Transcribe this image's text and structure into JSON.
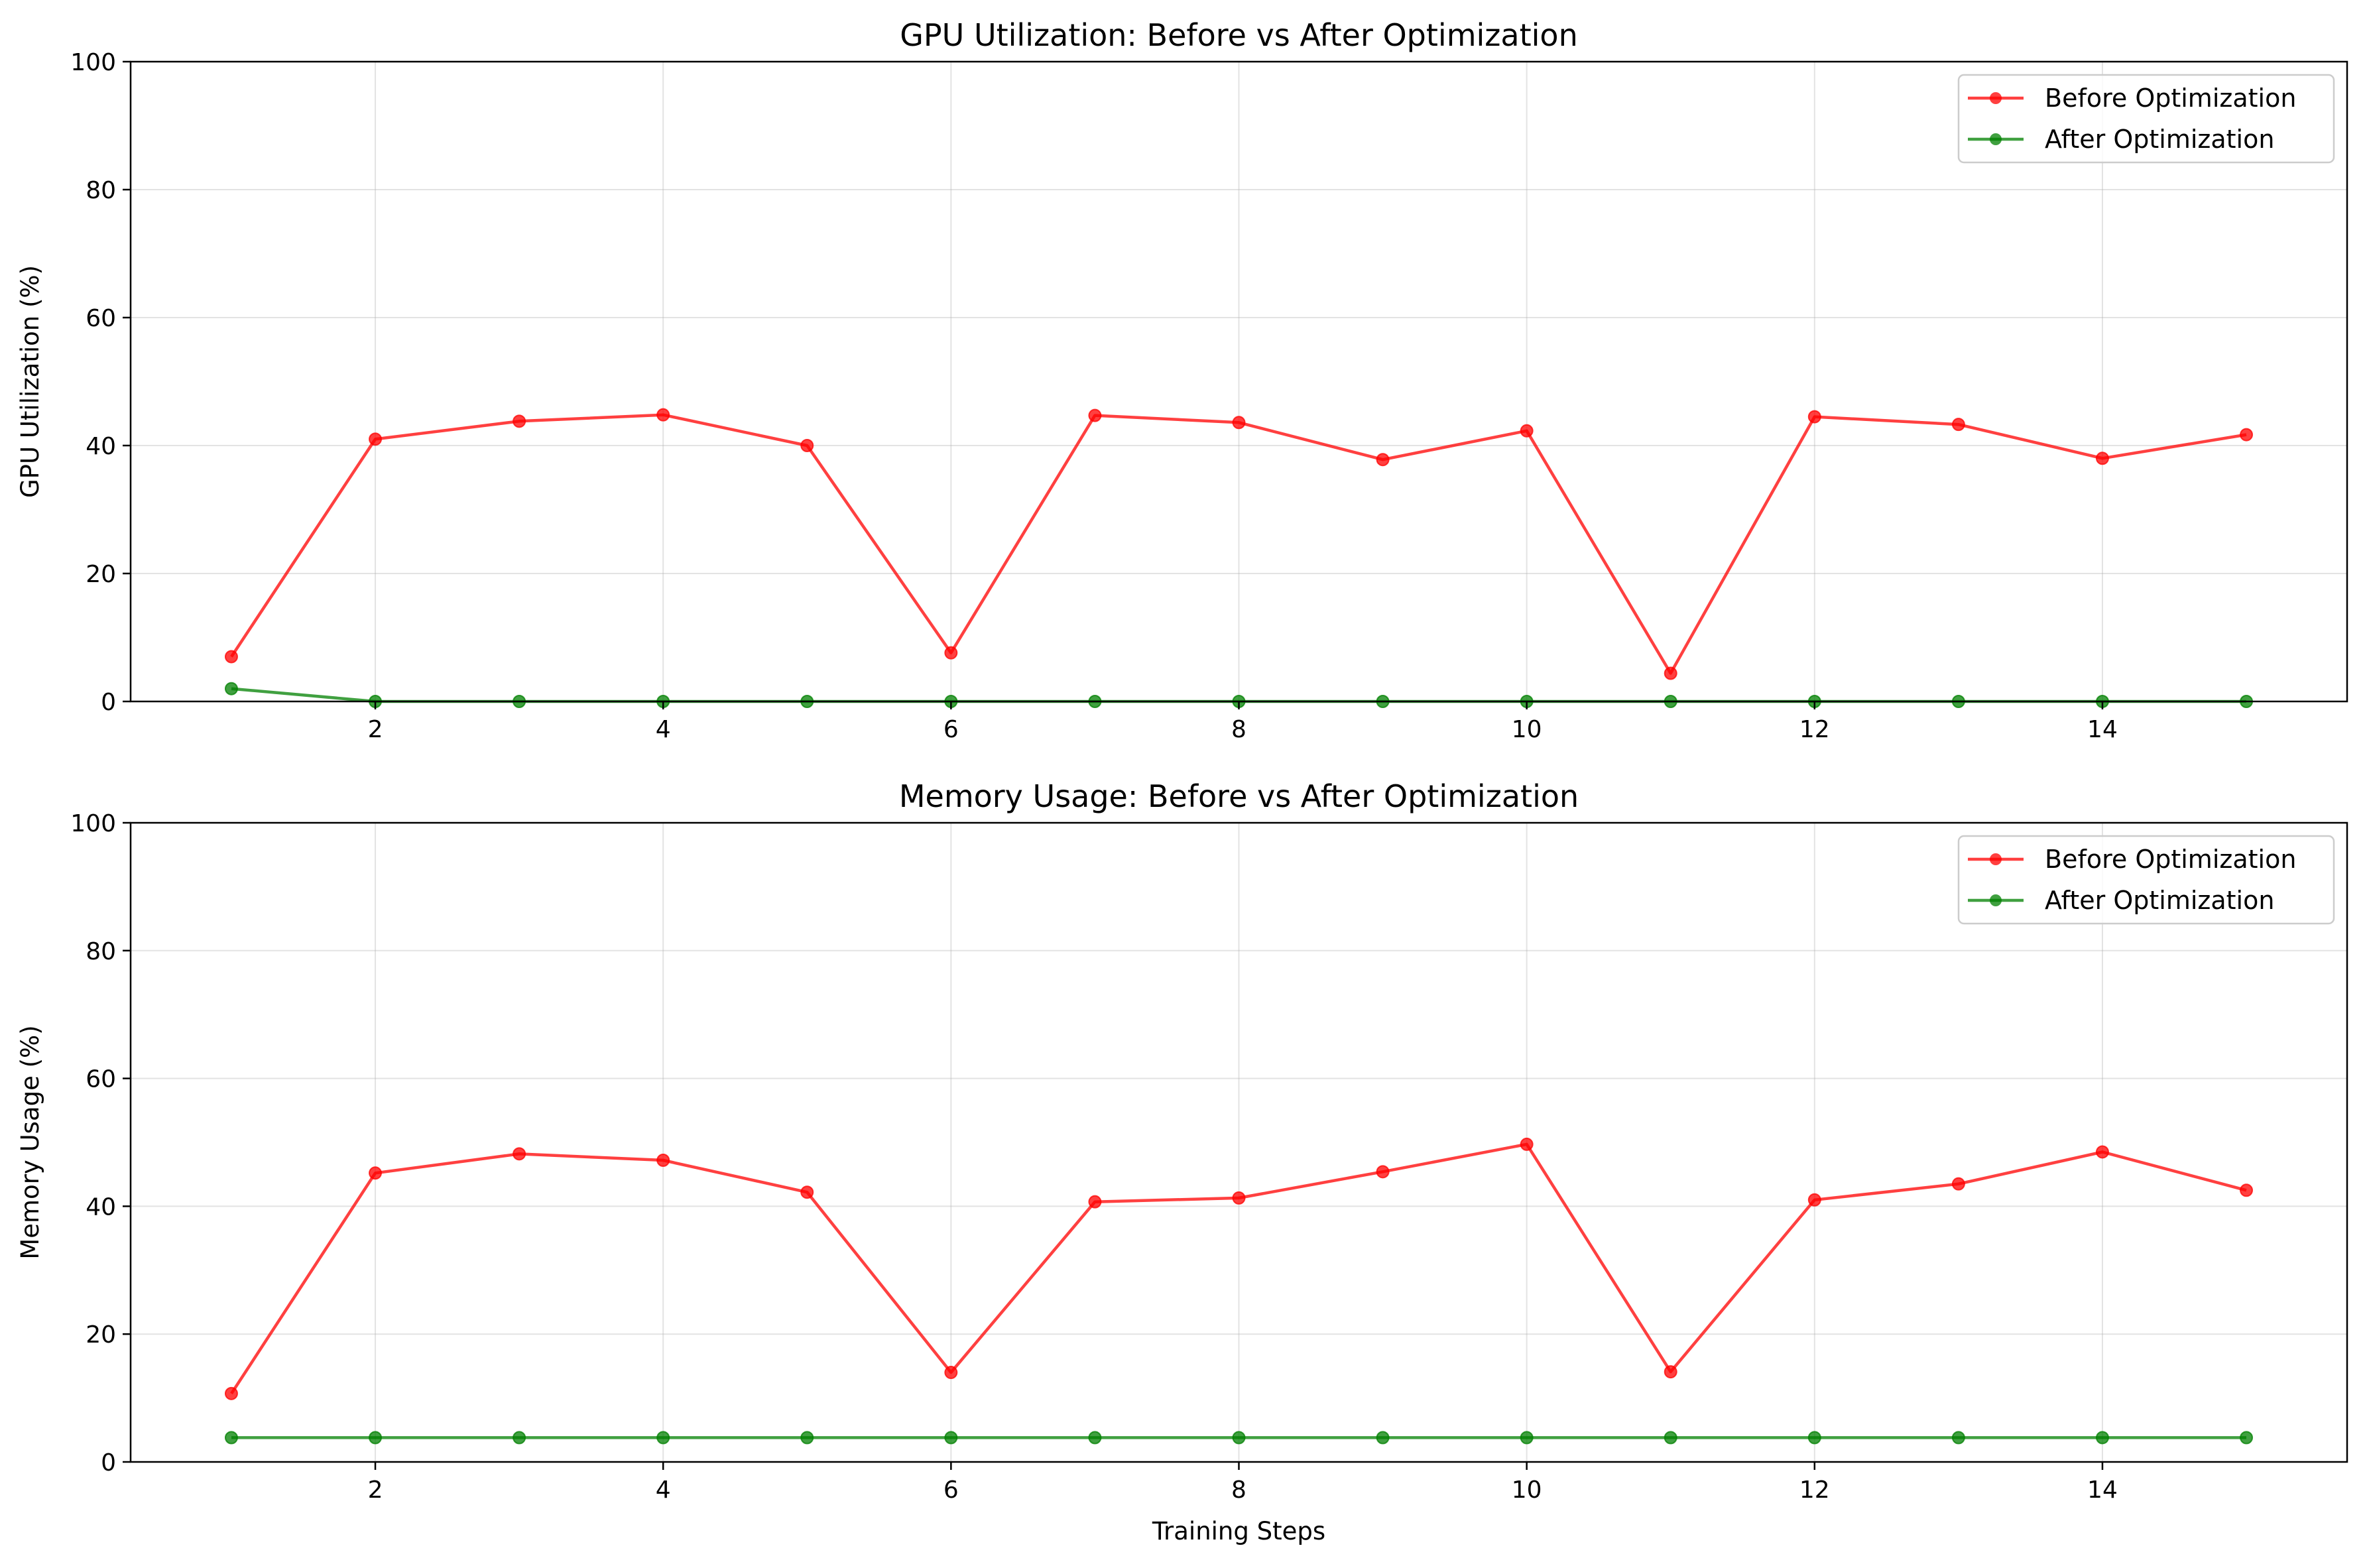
{
  "colors": {
    "before": "#ff0000",
    "after": "#008000"
  },
  "chart_data": [
    {
      "type": "line",
      "title": "GPU Utilization: Before vs After Optimization",
      "xlabel": "",
      "ylabel": "GPU Utilization (%)",
      "ylim": [
        0,
        100
      ],
      "xlim": [
        0.3,
        15.7
      ],
      "x": [
        1,
        2,
        3,
        4,
        5,
        6,
        7,
        8,
        9,
        10,
        11,
        12,
        13,
        14,
        15
      ],
      "xticks": [
        2,
        4,
        6,
        8,
        10,
        12,
        14
      ],
      "yticks": [
        0,
        20,
        40,
        60,
        80,
        100
      ],
      "grid": true,
      "legend": "upper right",
      "series": [
        {
          "name": "Before Optimization",
          "color": "#ff0000",
          "values": [
            7.0,
            41.0,
            43.8,
            44.8,
            40.0,
            7.6,
            44.7,
            43.6,
            37.8,
            42.3,
            4.4,
            44.5,
            43.3,
            38.0,
            41.7
          ]
        },
        {
          "name": "After Optimization",
          "color": "#008000",
          "values": [
            2.0,
            0.0,
            0.0,
            0.0,
            0.0,
            0.0,
            0.0,
            0.0,
            0.0,
            0.0,
            0.0,
            0.0,
            0.0,
            0.0,
            0.0
          ]
        }
      ]
    },
    {
      "type": "line",
      "title": "Memory Usage: Before vs After Optimization",
      "xlabel": "Training Steps",
      "ylabel": "Memory Usage (%)",
      "ylim": [
        0,
        100
      ],
      "xlim": [
        0.3,
        15.7
      ],
      "x": [
        1,
        2,
        3,
        4,
        5,
        6,
        7,
        8,
        9,
        10,
        11,
        12,
        13,
        14,
        15
      ],
      "xticks": [
        2,
        4,
        6,
        8,
        10,
        12,
        14
      ],
      "yticks": [
        0,
        20,
        40,
        60,
        80,
        100
      ],
      "grid": true,
      "legend": "upper right",
      "series": [
        {
          "name": "Before Optimization",
          "color": "#ff0000",
          "values": [
            10.7,
            45.2,
            48.2,
            47.2,
            42.2,
            14.0,
            40.7,
            41.3,
            45.4,
            49.7,
            14.1,
            41.0,
            43.5,
            48.5,
            42.5
          ]
        },
        {
          "name": "After Optimization",
          "color": "#008000",
          "values": [
            3.8,
            3.8,
            3.8,
            3.8,
            3.8,
            3.8,
            3.8,
            3.8,
            3.8,
            3.8,
            3.8,
            3.8,
            3.8,
            3.8,
            3.8
          ]
        }
      ]
    }
  ]
}
